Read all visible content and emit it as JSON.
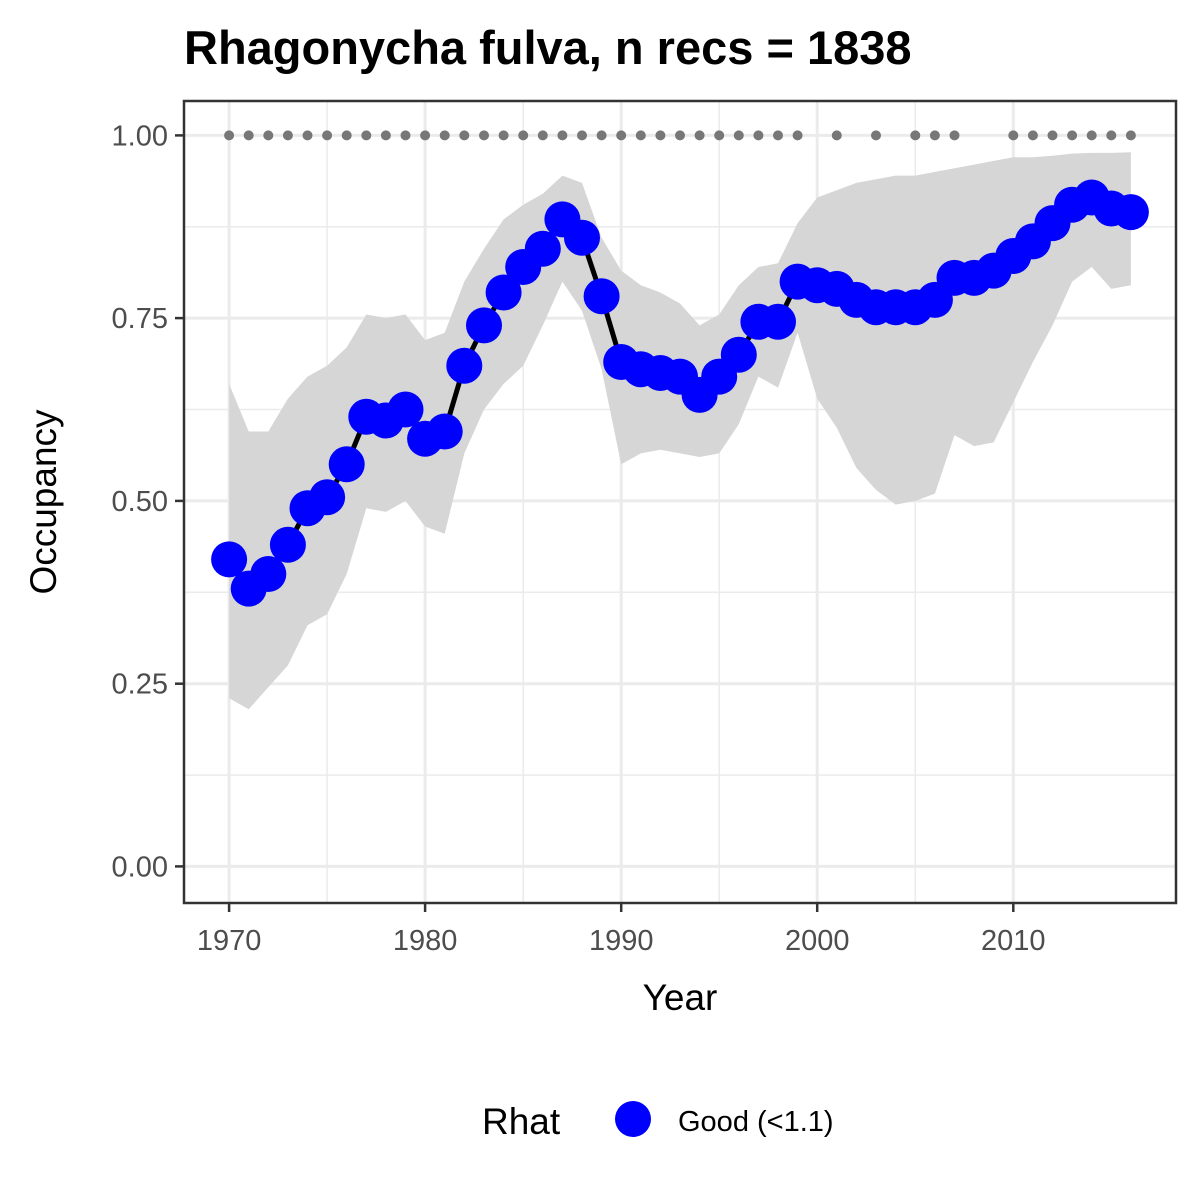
{
  "chart_data": {
    "type": "line",
    "title": "Rhagonycha fulva, n recs = 1838",
    "xlabel": "Year",
    "ylabel": "Occupancy",
    "xlim": [
      1967.7,
      2018.3
    ],
    "ylim": [
      -0.05,
      1.047
    ],
    "x_ticks": [
      1970,
      1980,
      1990,
      2000,
      2010
    ],
    "x_tick_labels": [
      "1970",
      "1980",
      "1990",
      "2000",
      "2010"
    ],
    "y_ticks": [
      0,
      0.25,
      0.5,
      0.75,
      1.0
    ],
    "y_tick_labels": [
      "0.00",
      "0.25",
      "0.50",
      "0.75",
      "1.00"
    ],
    "grid": true,
    "legend": {
      "title": "Rhat",
      "position": "bottom",
      "entries": [
        {
          "label": "Good (<1.1)",
          "color": "#0000ff"
        }
      ]
    },
    "colors": {
      "points": "#0000ff",
      "line": "#000000",
      "ribbon": "#d6d6d6",
      "record_dots": "#777777",
      "grid": "#ebebeb"
    },
    "series": [
      {
        "name": "Good (<1.1)",
        "x": [
          1970,
          1971,
          1972,
          1973,
          1974,
          1975,
          1976,
          1977,
          1978,
          1979,
          1980,
          1981,
          1982,
          1983,
          1984,
          1985,
          1986,
          1987,
          1988,
          1989,
          1990,
          1991,
          1992,
          1993,
          1994,
          1995,
          1996,
          1997,
          1998,
          1999,
          2000,
          2001,
          2002,
          2003,
          2004,
          2005,
          2006,
          2007,
          2008,
          2009,
          2010,
          2011,
          2012,
          2013,
          2014,
          2015,
          2016
        ],
        "y": [
          0.42,
          0.38,
          0.4,
          0.44,
          0.49,
          0.505,
          0.55,
          0.615,
          0.61,
          0.625,
          0.585,
          0.595,
          0.685,
          0.74,
          0.785,
          0.82,
          0.845,
          0.885,
          0.86,
          0.78,
          0.69,
          0.68,
          0.675,
          0.67,
          0.645,
          0.67,
          0.7,
          0.745,
          0.745,
          0.8,
          0.795,
          0.79,
          0.775,
          0.765,
          0.765,
          0.765,
          0.775,
          0.805,
          0.805,
          0.815,
          0.835,
          0.855,
          0.88,
          0.905,
          0.915,
          0.9,
          0.895
        ],
        "lower": [
          0.23,
          0.215,
          0.245,
          0.275,
          0.33,
          0.345,
          0.4,
          0.49,
          0.485,
          0.5,
          0.465,
          0.455,
          0.565,
          0.625,
          0.66,
          0.685,
          0.74,
          0.8,
          0.76,
          0.68,
          0.55,
          0.565,
          0.57,
          0.565,
          0.56,
          0.565,
          0.605,
          0.67,
          0.655,
          0.73,
          0.64,
          0.6,
          0.545,
          0.515,
          0.495,
          0.5,
          0.51,
          0.59,
          0.575,
          0.58,
          0.635,
          0.69,
          0.74,
          0.8,
          0.82,
          0.79,
          0.795
        ],
        "upper": [
          0.66,
          0.595,
          0.595,
          0.64,
          0.67,
          0.685,
          0.71,
          0.755,
          0.75,
          0.755,
          0.72,
          0.73,
          0.8,
          0.845,
          0.885,
          0.905,
          0.92,
          0.945,
          0.935,
          0.86,
          0.815,
          0.795,
          0.785,
          0.77,
          0.74,
          0.755,
          0.795,
          0.82,
          0.825,
          0.88,
          0.915,
          0.925,
          0.935,
          0.94,
          0.945,
          0.945,
          0.95,
          0.955,
          0.96,
          0.965,
          0.97,
          0.97,
          0.972,
          0.975,
          0.976,
          0.976,
          0.977
        ]
      }
    ],
    "records": {
      "x": [
        1970,
        1971,
        1972,
        1973,
        1974,
        1975,
        1976,
        1977,
        1978,
        1979,
        1980,
        1981,
        1982,
        1983,
        1984,
        1985,
        1986,
        1987,
        1988,
        1989,
        1990,
        1991,
        1992,
        1993,
        1994,
        1995,
        1996,
        1997,
        1998,
        1999,
        2001,
        2003,
        2005,
        2006,
        2007,
        2010,
        2011,
        2012,
        2013,
        2014,
        2015,
        2016
      ],
      "y": 1.0
    }
  }
}
